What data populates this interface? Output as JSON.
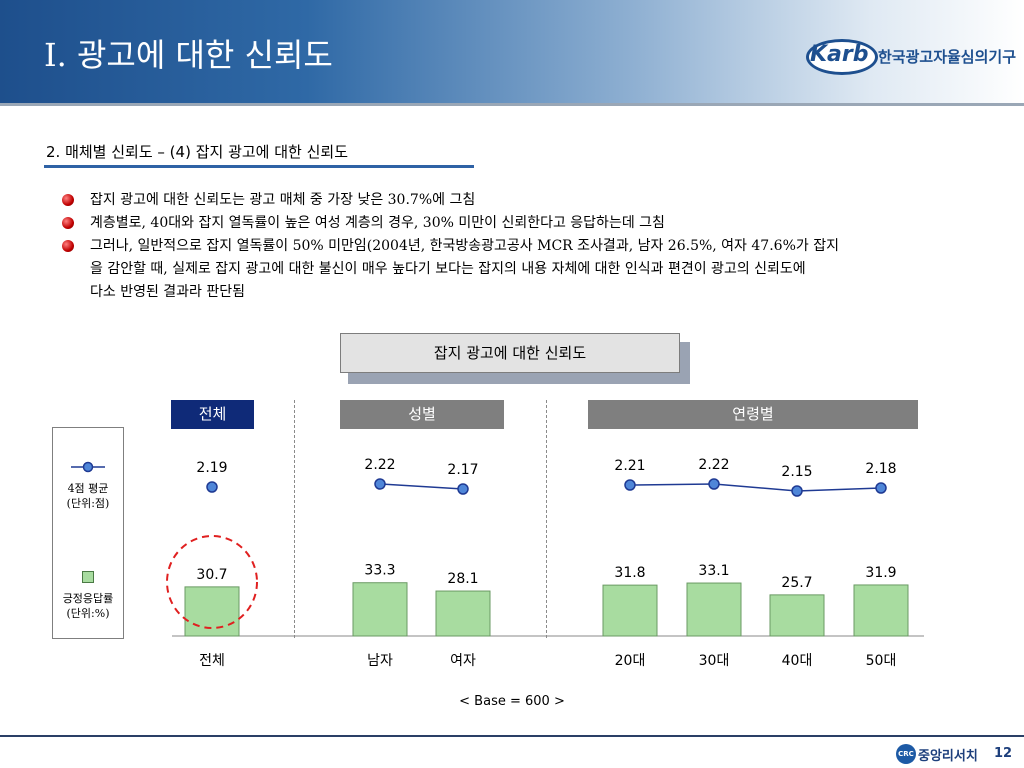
{
  "header": {
    "title": "Ⅰ. 광고에 대한 신뢰도",
    "logo_word": "Karb",
    "logo_sub": "한국광고자율심의기구"
  },
  "section_title": "2. 매체별 신뢰도 – (4) 잡지 광고에 대한 신뢰도",
  "bullets": [
    {
      "lines": [
        "잡지 광고에 대한 신뢰도는 광고 매체 중 가장 낮은 30.7%에 그침"
      ]
    },
    {
      "lines": [
        "계층별로, 40대와 잡지 열독률이 높은 여성 계층의 경우, 30% 미만이 신뢰한다고 응답하는데 그침"
      ]
    },
    {
      "lines": [
        "그러나, 일반적으로 잡지 열독률이 50% 미만임(2004년, 한국방송광고공사 MCR 조사결과, 남자 26.5%, 여자 47.6%가 잡지",
        "을 감안할 때, 실제로 잡지 광고에 대한 불신이 매우 높다기 보다는 잡지의 내용 자체에 대한 인식과 편견이 광고의 신뢰도에",
        "다소 반영된 결과라 판단됨"
      ]
    }
  ],
  "chart_box_title": "잡지 광고에 대한 신뢰도",
  "groups": [
    {
      "label": "전체",
      "color": "#0f2a78"
    },
    {
      "label": "성별",
      "color": "#7f7f7f"
    },
    {
      "label": "연령별",
      "color": "#7f7f7f"
    }
  ],
  "legend": {
    "line_label": "4점 평균",
    "line_unit": "(단위:점)",
    "bar_label": "긍정응답률",
    "bar_unit": "(단위:%)"
  },
  "chart_data": {
    "type": "bar",
    "categories": [
      "전체",
      "남자",
      "여자",
      "20대",
      "30대",
      "40대",
      "50대"
    ],
    "series": [
      {
        "name": "긍정응답률",
        "unit": "%",
        "values": [
          30.7,
          33.3,
          28.1,
          31.8,
          33.1,
          25.7,
          31.9
        ]
      },
      {
        "name": "4점 평균",
        "unit": "점",
        "type": "line",
        "values": [
          2.19,
          2.22,
          2.17,
          2.21,
          2.22,
          2.15,
          2.18
        ]
      }
    ],
    "line_segments": [
      [
        0
      ],
      [
        1,
        2
      ],
      [
        3,
        4,
        5,
        6
      ]
    ],
    "highlight_category": "전체",
    "colors": {
      "bar": "#a8dca0",
      "line": "#1f3a93",
      "marker": "#4f86d8"
    }
  },
  "base_note": "< Base = 600 >",
  "footer": {
    "company": "중앙리서치",
    "crc": "CRC",
    "page": "12"
  }
}
